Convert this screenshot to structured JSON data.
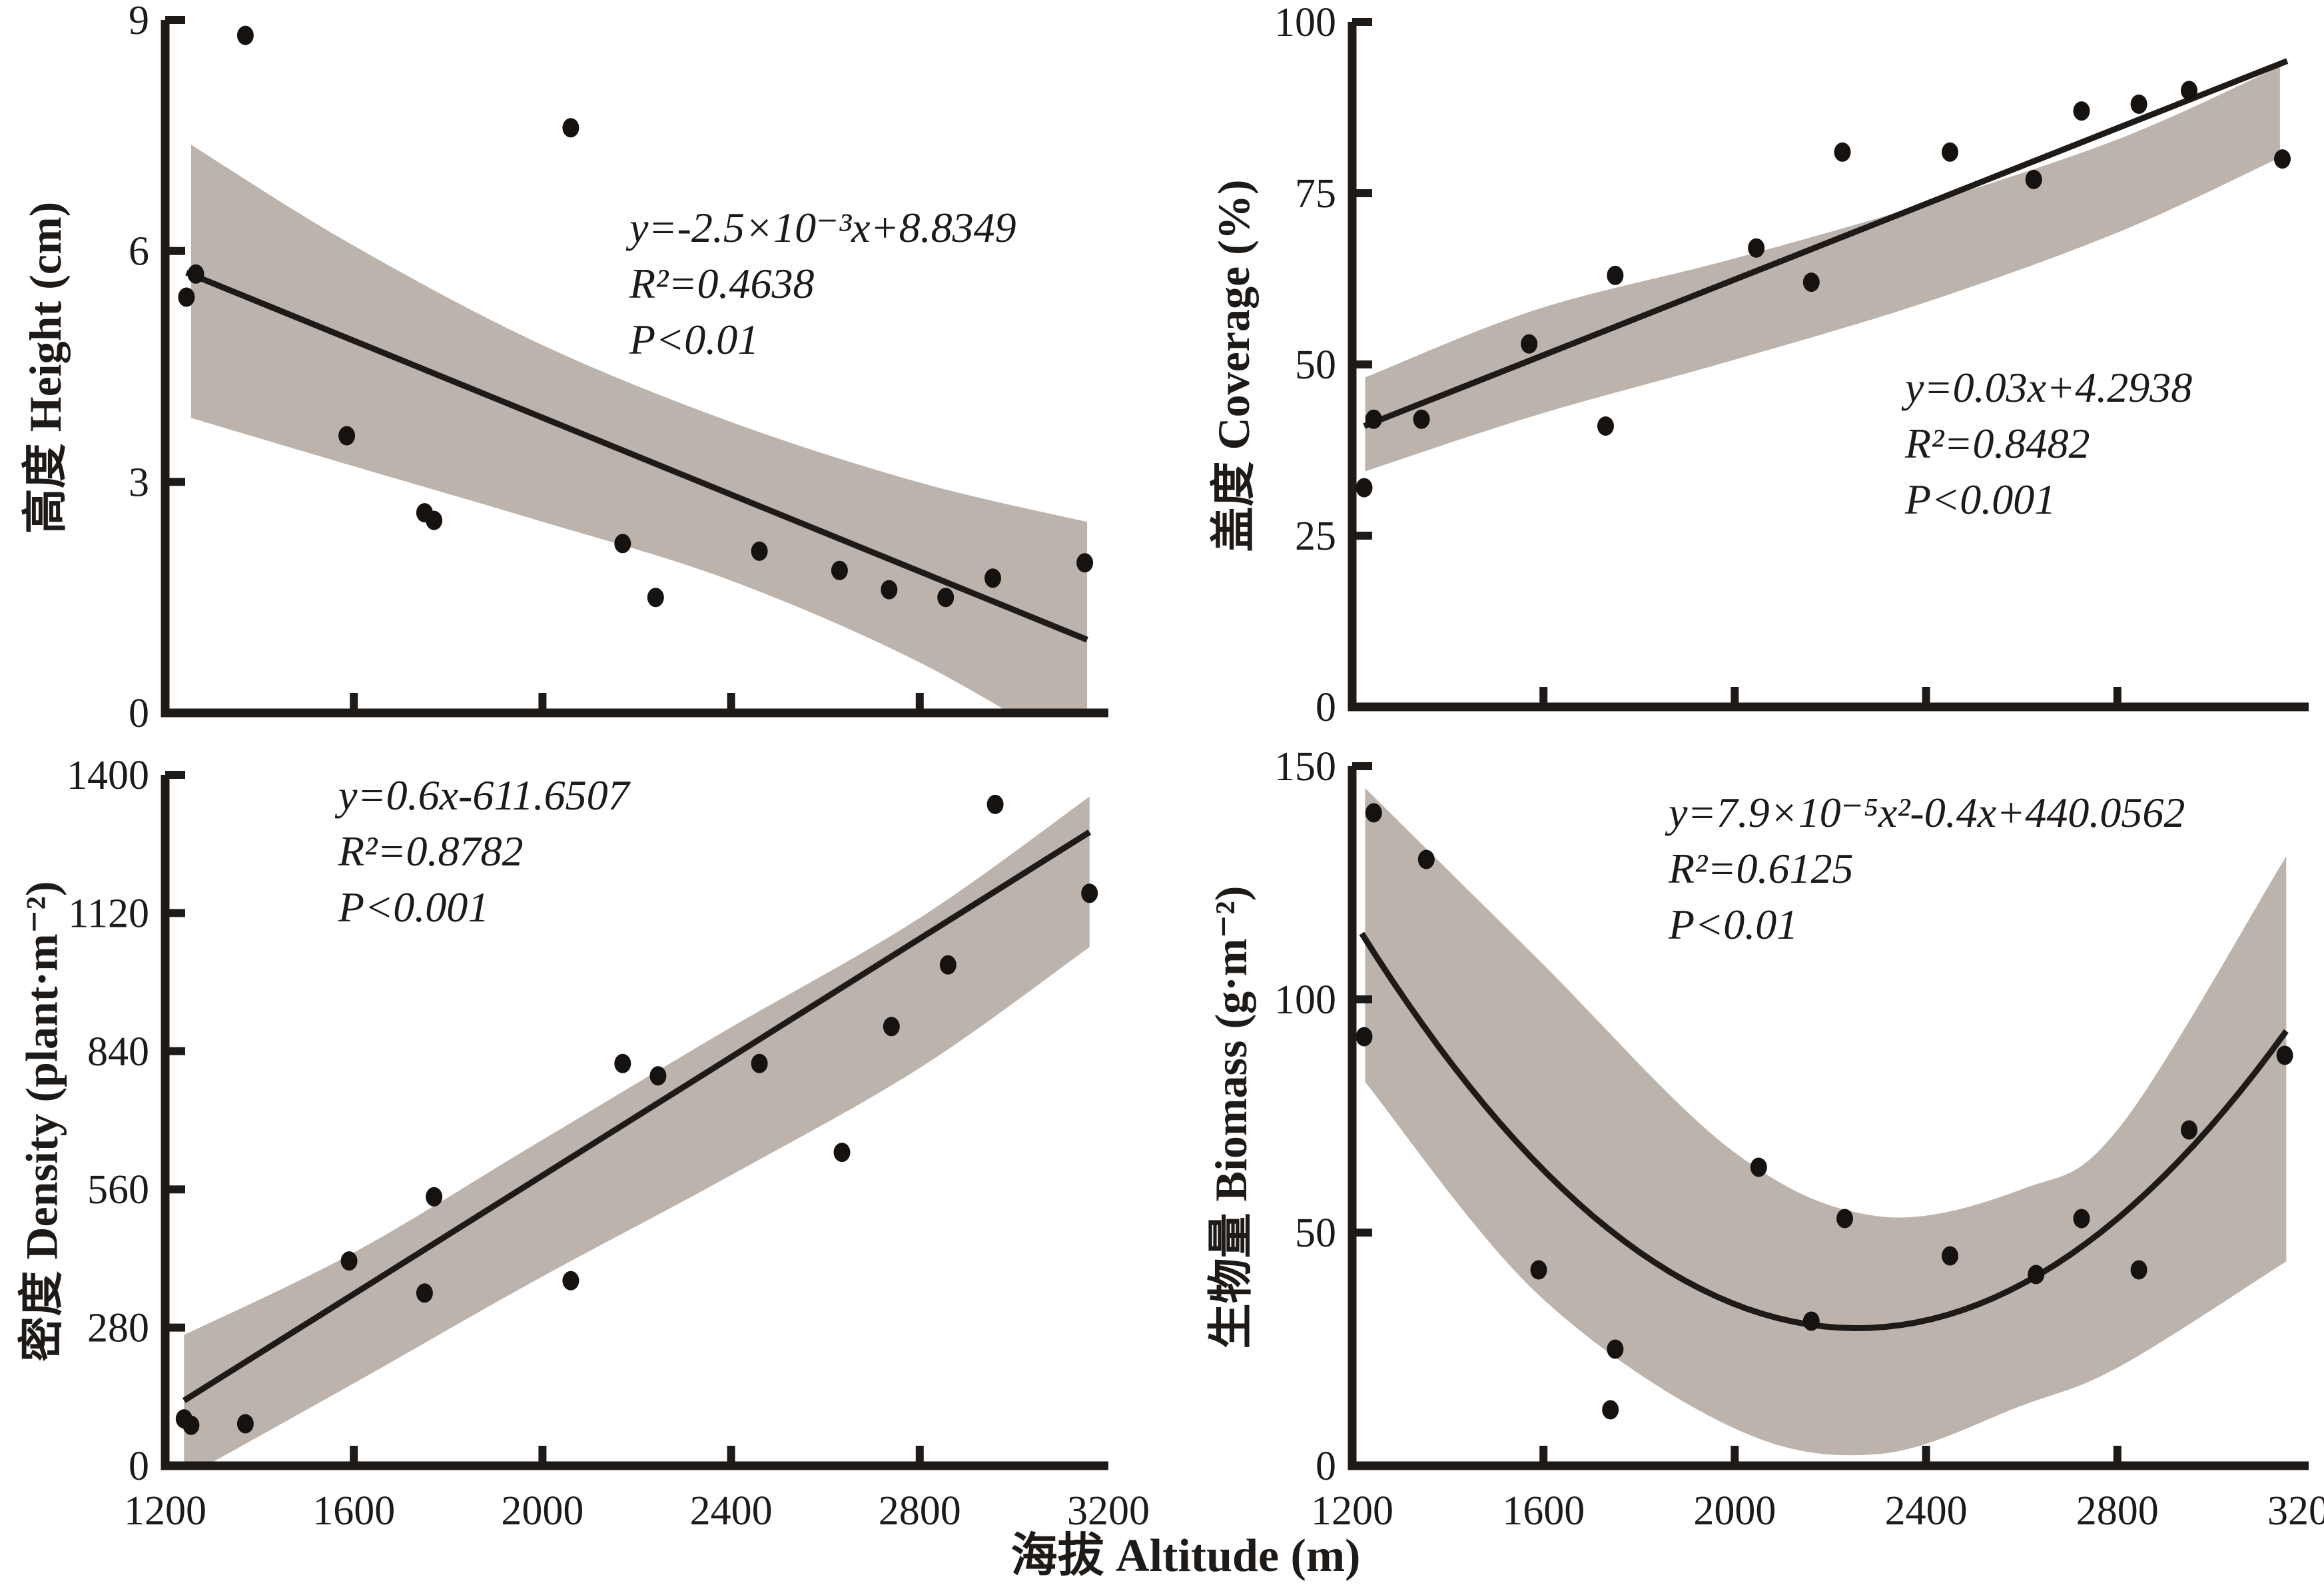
{
  "figure": {
    "xlabel": "海拔 Altitude (m)",
    "band_color": "#bcb4ac",
    "point_color": "#161210",
    "axis_color": "#1e1a17"
  },
  "chart_data": [
    {
      "id": "height",
      "type": "scatter",
      "ylabel": "高度 Height (cm)",
      "xlim": [
        1200,
        3200
      ],
      "ylim": [
        0,
        9
      ],
      "xticks": [
        1200,
        1600,
        2000,
        2400,
        2800,
        3200
      ],
      "yticks": [
        0,
        3,
        6,
        9
      ],
      "x_tick_labels_visible": false,
      "equation": [
        "y=-2.5×10⁻³x+8.8349",
        "R²=0.4638",
        "P<0.01"
      ],
      "points": [
        [
          1370,
          8.8
        ],
        [
          2060,
          7.6
        ],
        [
          1265,
          5.7
        ],
        [
          1245,
          5.4
        ],
        [
          1585,
          3.6
        ],
        [
          1750,
          2.6
        ],
        [
          1770,
          2.5
        ],
        [
          2170,
          2.2
        ],
        [
          2240,
          1.5
        ],
        [
          2460,
          2.1
        ],
        [
          2630,
          1.85
        ],
        [
          2735,
          1.6
        ],
        [
          2855,
          1.5
        ],
        [
          2955,
          1.75
        ],
        [
          3150,
          1.95
        ]
      ],
      "fit": {
        "type": "linear",
        "x1": 1245,
        "y1": 5.72,
        "x2": 3155,
        "y2": 0.95
      },
      "band": [
        [
          1255,
          3.83,
          7.38
        ],
        [
          1585,
          3.23,
          6.12
        ],
        [
          1985,
          2.51,
          4.82
        ],
        [
          2390,
          1.74,
          3.8
        ],
        [
          2795,
          0.67,
          3.0
        ],
        [
          3155,
          -0.6,
          2.48
        ]
      ]
    },
    {
      "id": "coverage",
      "type": "scatter",
      "ylabel": "盖度 Coverage (%)",
      "xlim": [
        1200,
        3200
      ],
      "ylim": [
        0,
        100
      ],
      "xticks": [
        1200,
        1600,
        2000,
        2400,
        2800,
        3200
      ],
      "yticks": [
        0,
        25,
        50,
        75,
        100
      ],
      "x_tick_labels_visible": false,
      "equation": [
        "y=0.03x+4.2938",
        "R²=0.8482",
        "P<0.001"
      ],
      "points": [
        [
          1245,
          42
        ],
        [
          1225,
          32
        ],
        [
          1345,
          42
        ],
        [
          1570,
          53
        ],
        [
          1730,
          41
        ],
        [
          1750,
          63
        ],
        [
          2045,
          67
        ],
        [
          2160,
          62
        ],
        [
          2225,
          81
        ],
        [
          2450,
          81
        ],
        [
          2625,
          77
        ],
        [
          2725,
          87
        ],
        [
          2845,
          88
        ],
        [
          2950,
          90
        ],
        [
          3145,
          80
        ]
      ],
      "fit": {
        "type": "linear",
        "x1": 1225,
        "y1": 41.0,
        "x2": 3155,
        "y2": 94.3
      },
      "band": [
        [
          1227,
          34.4,
          48.1
        ],
        [
          1585,
          42.6,
          58.0
        ],
        [
          1990,
          50.5,
          65.3
        ],
        [
          2396,
          59.0,
          73.4
        ],
        [
          2802,
          69.3,
          82.9
        ],
        [
          3140,
          80.2,
          93.5
        ]
      ]
    },
    {
      "id": "density",
      "type": "scatter",
      "ylabel": "密度 Density (plant·m⁻²)",
      "xlim": [
        1200,
        3200
      ],
      "ylim": [
        0,
        1400
      ],
      "xticks": [
        1200,
        1600,
        2000,
        2400,
        2800,
        3200
      ],
      "yticks": [
        0,
        280,
        560,
        840,
        1120,
        1400
      ],
      "x_tick_labels_visible": true,
      "equation": [
        "y=0.6x-611.6507",
        "R²=0.8782",
        "P<0.001"
      ],
      "points": [
        [
          1240,
          95
        ],
        [
          1255,
          82
        ],
        [
          1370,
          85
        ],
        [
          1590,
          415
        ],
        [
          1750,
          350
        ],
        [
          1770,
          545
        ],
        [
          2060,
          375
        ],
        [
          2170,
          815
        ],
        [
          2245,
          790
        ],
        [
          2460,
          815
        ],
        [
          2635,
          635
        ],
        [
          2740,
          890
        ],
        [
          2860,
          1015
        ],
        [
          2960,
          1340
        ],
        [
          3160,
          1160
        ]
      ],
      "fit": {
        "type": "linear",
        "x1": 1240,
        "y1": 132,
        "x2": 3160,
        "y2": 1284
      },
      "band": [
        [
          1240,
          -25,
          265
        ],
        [
          1600,
          167,
          432
        ],
        [
          1980,
          373,
          649
        ],
        [
          2383,
          580,
          879
        ],
        [
          2800,
          806,
          1110
        ],
        [
          3160,
          1051,
          1356
        ]
      ]
    },
    {
      "id": "biomass",
      "type": "scatter",
      "ylabel": "生物量 Biomass (g·m⁻²)",
      "xlim": [
        1200,
        3200
      ],
      "ylim": [
        0,
        150
      ],
      "xticks": [
        1200,
        1600,
        2000,
        2400,
        2800,
        3200
      ],
      "yticks": [
        0,
        50,
        100,
        150
      ],
      "x_tick_labels_visible": true,
      "equation": [
        "y=7.9×10⁻⁵x²-0.4x+440.0562",
        "R²=0.6125",
        "P<0.01"
      ],
      "points": [
        [
          1225,
          92
        ],
        [
          1245,
          140
        ],
        [
          1355,
          130
        ],
        [
          1590,
          42
        ],
        [
          1740,
          12
        ],
        [
          1750,
          25
        ],
        [
          2050,
          64
        ],
        [
          2160,
          31
        ],
        [
          2230,
          53
        ],
        [
          2450,
          45
        ],
        [
          2630,
          41
        ],
        [
          2725,
          53
        ],
        [
          2845,
          42
        ],
        [
          2950,
          72
        ],
        [
          3150,
          88
        ]
      ],
      "fit": {
        "type": "quadratic",
        "a": 7.9e-05,
        "x0": 2255,
        "y0": 29.5,
        "xstart": 1220,
        "xend": 3153
      },
      "band": [
        [
          1227,
          82.3,
          145.3
        ],
        [
          1586,
          37.0,
          108.9
        ],
        [
          1993,
          8.3,
          67.7
        ],
        [
          2300,
          2.5,
          53.5
        ],
        [
          2603,
          13.0,
          59.4
        ],
        [
          2807,
          21.4,
          72.9
        ],
        [
          3153,
          43.8,
          130.7
        ]
      ]
    }
  ]
}
